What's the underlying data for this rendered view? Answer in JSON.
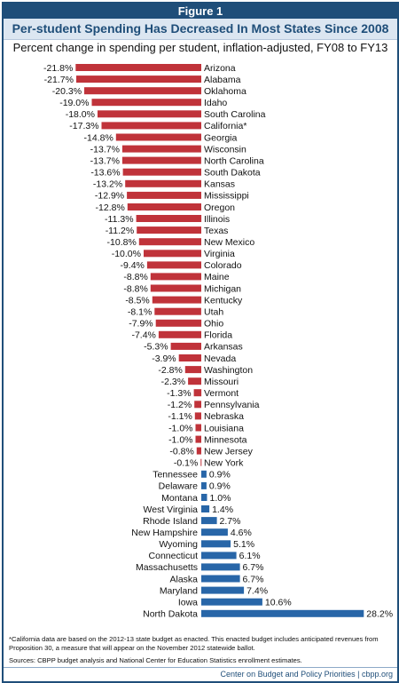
{
  "figure_label": "Figure 1",
  "title": "Per-student Spending Has Decreased In Most States Since 2008",
  "subtitle": "Percent change in spending per student, inflation-adjusted, FY08 to FY13",
  "footnote": "*California data are based on the 2012-13 state budget as enacted. This enacted budget includes anticipated revenues from Proposition 30, a measure that will appear on the November 2012 statewide ballot.",
  "sources": "Sources: CBPP budget analysis and National Center for Education Statistics enrollment estimates.",
  "footer": "Center on Budget and Policy Priorities | cbpp.org",
  "colors": {
    "negative": "#c0333a",
    "positive": "#2866a8",
    "header": "#1f4e79",
    "band": "#dce6f1"
  },
  "chart_data": {
    "type": "bar",
    "orientation": "horizontal",
    "value_suffix": "%",
    "grid": false,
    "legend": "none",
    "xlim": [
      -21.8,
      28.2
    ],
    "categories": [
      "Arizona",
      "Alabama",
      "Oklahoma",
      "Idaho",
      "South Carolina",
      "California*",
      "Georgia",
      "Wisconsin",
      "North Carolina",
      "South Dakota",
      "Kansas",
      "Mississippi",
      "Oregon",
      "Illinois",
      "Texas",
      "New Mexico",
      "Virginia",
      "Colorado",
      "Maine",
      "Michigan",
      "Kentucky",
      "Utah",
      "Ohio",
      "Florida",
      "Arkansas",
      "Nevada",
      "Washington",
      "Missouri",
      "Vermont",
      "Pennsylvania",
      "Nebraska",
      "Louisiana",
      "Minnesota",
      "New Jersey",
      "New York",
      "Tennessee",
      "Delaware",
      "Montana",
      "West Virginia",
      "Rhode Island",
      "New Hampshire",
      "Wyoming",
      "Connecticut",
      "Massachusetts",
      "Alaska",
      "Maryland",
      "Iowa",
      "North Dakota"
    ],
    "values": [
      -21.8,
      -21.7,
      -20.3,
      -19.0,
      -18.0,
      -17.3,
      -14.8,
      -13.7,
      -13.7,
      -13.6,
      -13.2,
      -12.9,
      -12.8,
      -11.3,
      -11.2,
      -10.8,
      -10.0,
      -9.4,
      -8.8,
      -8.8,
      -8.5,
      -8.1,
      -7.9,
      -7.4,
      -5.3,
      -3.9,
      -2.8,
      -2.3,
      -1.3,
      -1.2,
      -1.1,
      -1.0,
      -1.0,
      -0.8,
      -0.1,
      0.9,
      0.9,
      1.0,
      1.4,
      2.7,
      4.6,
      5.1,
      6.1,
      6.7,
      6.7,
      7.4,
      10.6,
      28.2
    ]
  }
}
